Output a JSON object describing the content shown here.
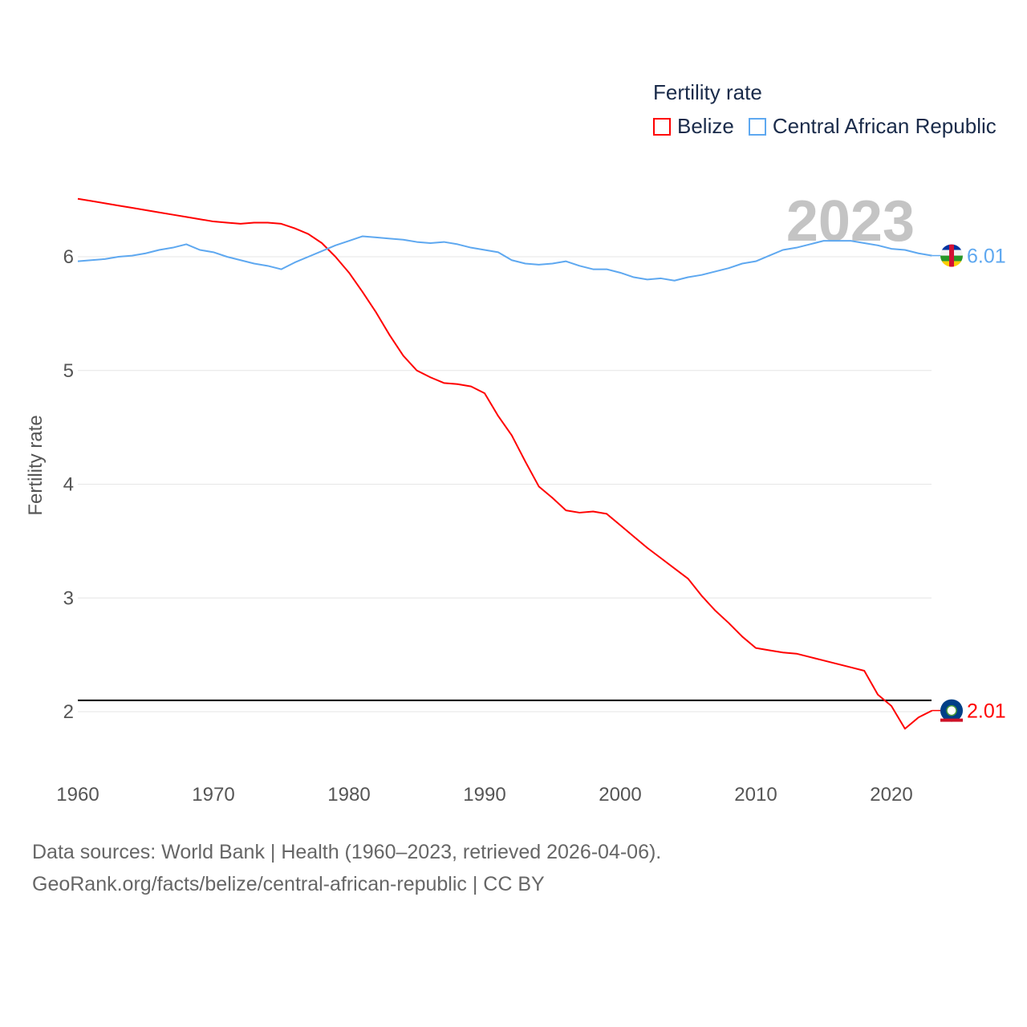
{
  "chart_data": {
    "type": "line",
    "title": "Fertility rate",
    "ylabel": "Fertility rate",
    "xlabel": "",
    "year_label": "2023",
    "xlim": [
      1960,
      2023
    ],
    "ylim": [
      1.6,
      6.6
    ],
    "x_ticks": [
      "1960",
      "1970",
      "1980",
      "1990",
      "2000",
      "2010",
      "2020"
    ],
    "y_ticks": [
      "2",
      "3",
      "4",
      "5",
      "6"
    ],
    "grid": true,
    "legend_position": "top-right",
    "reference_line": 2.1,
    "x": [
      1960,
      1961,
      1962,
      1963,
      1964,
      1965,
      1966,
      1967,
      1968,
      1969,
      1970,
      1971,
      1972,
      1973,
      1974,
      1975,
      1976,
      1977,
      1978,
      1979,
      1980,
      1981,
      1982,
      1983,
      1984,
      1985,
      1986,
      1987,
      1988,
      1989,
      1990,
      1991,
      1992,
      1993,
      1994,
      1995,
      1996,
      1997,
      1998,
      1999,
      2000,
      2001,
      2002,
      2003,
      2004,
      2005,
      2006,
      2007,
      2008,
      2009,
      2010,
      2011,
      2012,
      2013,
      2014,
      2015,
      2016,
      2017,
      2018,
      2019,
      2020,
      2021,
      2022,
      2023
    ],
    "series": [
      {
        "name": "Belize",
        "color": "#ff0000",
        "end_label": "2.01",
        "values": [
          6.51,
          6.49,
          6.47,
          6.45,
          6.43,
          6.41,
          6.39,
          6.37,
          6.35,
          6.33,
          6.31,
          6.3,
          6.29,
          6.3,
          6.3,
          6.29,
          6.25,
          6.2,
          6.12,
          6.0,
          5.86,
          5.69,
          5.51,
          5.31,
          5.13,
          5.0,
          4.94,
          4.89,
          4.88,
          4.86,
          4.8,
          4.6,
          4.43,
          4.2,
          3.98,
          3.88,
          3.77,
          3.75,
          3.76,
          3.74,
          3.64,
          3.54,
          3.44,
          3.35,
          3.26,
          3.17,
          3.02,
          2.89,
          2.78,
          2.66,
          2.56,
          2.54,
          2.52,
          2.51,
          2.48,
          2.45,
          2.42,
          2.39,
          2.36,
          2.15,
          2.05,
          1.85,
          1.95,
          2.01
        ]
      },
      {
        "name": "Central African Republic",
        "color": "#5ea8f0",
        "end_label": "6.01",
        "values": [
          5.96,
          5.97,
          5.98,
          6.0,
          6.01,
          6.03,
          6.06,
          6.08,
          6.11,
          6.06,
          6.04,
          6.0,
          5.97,
          5.94,
          5.92,
          5.89,
          5.95,
          6.0,
          6.05,
          6.1,
          6.14,
          6.18,
          6.17,
          6.16,
          6.15,
          6.13,
          6.12,
          6.13,
          6.11,
          6.08,
          6.06,
          6.04,
          5.97,
          5.94,
          5.93,
          5.94,
          5.96,
          5.92,
          5.89,
          5.89,
          5.86,
          5.82,
          5.8,
          5.81,
          5.79,
          5.82,
          5.84,
          5.87,
          5.9,
          5.94,
          5.96,
          6.01,
          6.06,
          6.08,
          6.11,
          6.14,
          6.14,
          6.14,
          6.12,
          6.1,
          6.07,
          6.06,
          6.03,
          6.01
        ]
      }
    ]
  },
  "footer": {
    "line1": "Data sources: World Bank | Health (1960–2023, retrieved 2026-04-06).",
    "line2": "GeoRank.org/facts/belize/central-african-republic | CC BY"
  }
}
